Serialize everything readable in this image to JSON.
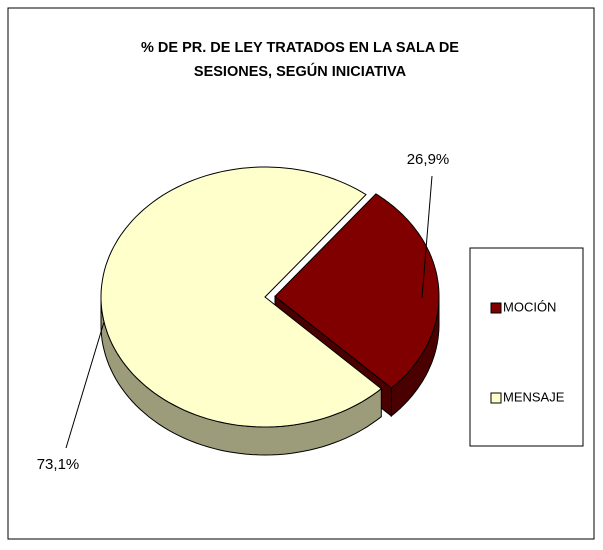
{
  "chart_data": {
    "type": "pie",
    "title": "% DE PR. DE LEY TRATADOS EN LA SALA DE SESIONES, SEGÚN INICIATIVA",
    "title_lines": [
      "% DE PR. DE LEY TRATADOS EN LA SALA DE",
      "SESIONES, SEGÚN INICIATIVA"
    ],
    "categories": [
      "MOCIÓN",
      "MENSAJE"
    ],
    "values": [
      26.9,
      73.1
    ],
    "value_labels": [
      "26,9%",
      "73,1%"
    ],
    "colors": [
      "#800000",
      "#ffffcc"
    ],
    "side_colors": [
      "#4a0000",
      "#9c9c7a"
    ],
    "legend": "right"
  }
}
